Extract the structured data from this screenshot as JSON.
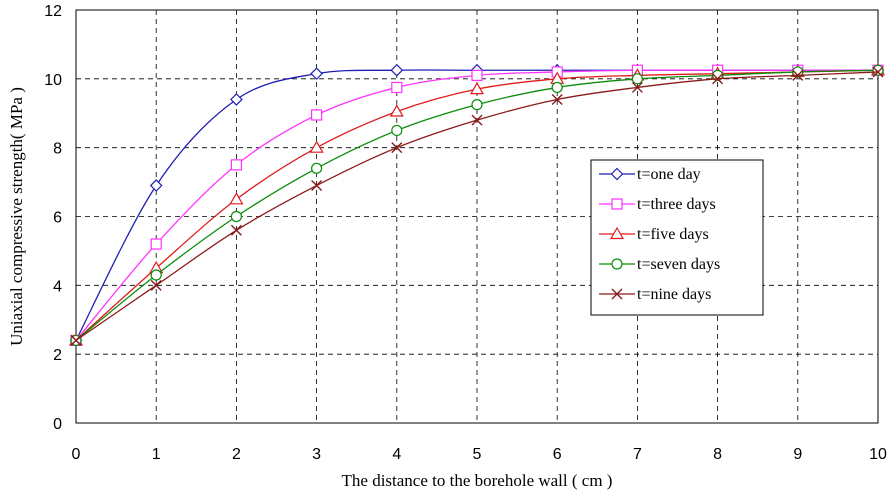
{
  "chart_data": {
    "type": "line",
    "xlabel": "The distance to the borehole wall ( cm )",
    "ylabel": "Uniaxial compressive strength( MPa )",
    "xlim": [
      0,
      10
    ],
    "ylim": [
      0,
      12
    ],
    "xticks": [
      0,
      1,
      2,
      3,
      4,
      5,
      6,
      7,
      8,
      9,
      10
    ],
    "yticks": [
      0,
      2,
      4,
      6,
      8,
      10,
      12
    ],
    "grid": true,
    "legend_position": "right",
    "x": [
      0,
      1,
      2,
      3,
      4,
      5,
      6,
      7,
      8,
      9,
      10
    ],
    "series": [
      {
        "name": "t=one day",
        "color": "#1f1fb4",
        "marker": "diamond",
        "values": [
          2.4,
          6.9,
          9.4,
          10.15,
          10.25,
          10.25,
          10.25,
          10.25,
          10.25,
          10.25,
          10.25
        ]
      },
      {
        "name": "t=three days",
        "color": "#ff33ff",
        "marker": "square",
        "values": [
          2.4,
          5.2,
          7.5,
          8.95,
          9.75,
          10.1,
          10.2,
          10.25,
          10.25,
          10.25,
          10.25
        ]
      },
      {
        "name": "t=five days",
        "color": "#e01b1b",
        "marker": "triangle",
        "values": [
          2.4,
          4.5,
          6.5,
          8.0,
          9.05,
          9.7,
          10.0,
          10.1,
          10.15,
          10.2,
          10.25
        ]
      },
      {
        "name": "t=seven days",
        "color": "#0a8c0a",
        "marker": "circle",
        "values": [
          2.4,
          4.3,
          6.0,
          7.4,
          8.5,
          9.25,
          9.75,
          10.0,
          10.1,
          10.2,
          10.25
        ]
      },
      {
        "name": "t=nine days",
        "color": "#8b1a1a",
        "marker": "x",
        "values": [
          2.4,
          4.0,
          5.6,
          6.9,
          8.0,
          8.8,
          9.4,
          9.75,
          10.0,
          10.1,
          10.2
        ]
      }
    ]
  }
}
